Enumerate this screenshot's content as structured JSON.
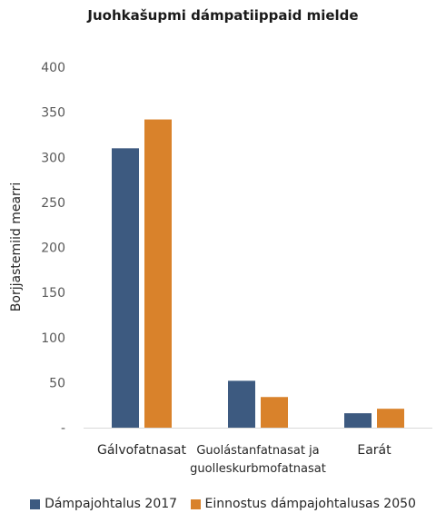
{
  "chart_data": {
    "type": "bar",
    "title": "Juohkašupmi dámpatiippaid mielde",
    "xlabel": "",
    "ylabel": "Borjjastemiid mearri",
    "ylim": [
      0,
      400
    ],
    "yticks": [
      "-",
      "50",
      "100",
      "150",
      "200",
      "250",
      "300",
      "350",
      "400"
    ],
    "categories": [
      [
        "Gálvofatnasat"
      ],
      [
        "Guolástanfatnasat ja",
        "guolleskurbmofatnasat"
      ],
      [
        "Earát"
      ]
    ],
    "series": [
      {
        "name": "Dámpajohtalus 2017",
        "color": "#3d5a80",
        "values": [
          310,
          52,
          16
        ]
      },
      {
        "name": "Einnostus dámpajohtalusas 2050",
        "color": "#d9822b",
        "values": [
          342,
          34,
          21
        ]
      }
    ],
    "grid": false,
    "legend_position": "bottom"
  }
}
